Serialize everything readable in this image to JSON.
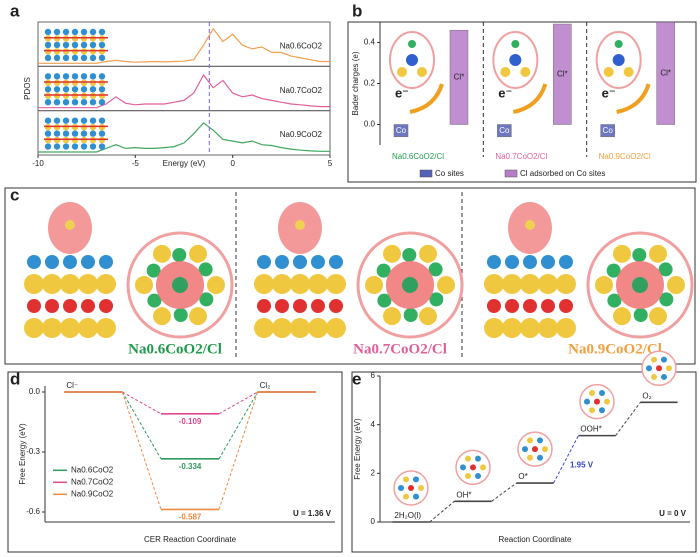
{
  "panel_labels": [
    "a",
    "b",
    "c",
    "d",
    "e"
  ],
  "figure_c": {
    "labels": [
      "Na0.6CoO2/Cl",
      "Na0.7CoO2/Cl",
      "Na0.9CoO2/Cl"
    ],
    "colors": [
      "#1f9a4a",
      "#e0609a",
      "#f0a040"
    ]
  },
  "chart_data": [
    {
      "type": "line",
      "xlabel": "Energy (eV)",
      "ylabel": "PDOS",
      "x": [
        -10,
        -9.5,
        -9,
        -8.5,
        -8,
        -7.5,
        -7,
        -6.5,
        -6,
        -5.5,
        -5,
        -4.5,
        -4,
        -3.5,
        -3,
        -2.5,
        -2,
        -1.5,
        -1,
        -0.5,
        0,
        0.5,
        1,
        1.5,
        2,
        2.5,
        3,
        3.5,
        4,
        4.5,
        5
      ],
      "xlim": [
        -10,
        5
      ],
      "xticks": [
        -10,
        -5,
        0,
        5
      ],
      "ylim": [
        0,
        1
      ],
      "vline": -1.2,
      "series": [
        {
          "name": "Na0.6CoO2",
          "color": "#f0a050",
          "values": [
            0,
            0,
            0,
            0,
            0,
            0,
            0,
            0.05,
            0.08,
            0.05,
            0.03,
            0.04,
            0.05,
            0.04,
            0.05,
            0.06,
            0.1,
            0.5,
            0.95,
            0.6,
            0.8,
            0.5,
            0.4,
            0.45,
            0.3,
            0.3,
            0.2,
            0.15,
            0.1,
            0.05,
            0.05
          ]
        },
        {
          "name": "Na0.7CoO2",
          "color": "#e0609a",
          "values": [
            0,
            0,
            0,
            0,
            0,
            0,
            0,
            0.1,
            0.3,
            0.12,
            0.08,
            0.1,
            0.1,
            0.1,
            0.15,
            0.2,
            0.4,
            0.9,
            0.55,
            0.75,
            0.4,
            0.3,
            0.35,
            0.25,
            0.2,
            0.15,
            0.1,
            0.08,
            0.05,
            0.03,
            0.03
          ]
        },
        {
          "name": "Na0.9CoO2",
          "color": "#40a860",
          "values": [
            0,
            0,
            0,
            0,
            0,
            0,
            0,
            0.1,
            0.2,
            0.1,
            0.12,
            0.1,
            0.1,
            0.12,
            0.15,
            0.25,
            0.5,
            0.8,
            0.6,
            0.35,
            0.3,
            0.25,
            0.3,
            0.2,
            0.18,
            0.12,
            0.08,
            0.05,
            0.03,
            0.02,
            0.02
          ]
        }
      ]
    },
    {
      "type": "bar",
      "ylabel": "Bader charges (e)",
      "electron_label": "e⁻",
      "categories": [
        "Na0.6CoO2/Cl",
        "Na0.7CoO2/Cl",
        "Na0.9CoO2/Cl"
      ],
      "category_colors": [
        "#1f9a4a",
        "#e0609a",
        "#f0a040"
      ],
      "ylim": [
        -0.1,
        0.5
      ],
      "yticks": [
        {
          "value": 0,
          "label": "0.0"
        },
        0.2,
        0.4
      ],
      "series": [
        {
          "name": "Co sites",
          "label": "Co",
          "color": "#5561b8",
          "values": [
            -0.06,
            -0.06,
            -0.06
          ]
        },
        {
          "name": "Cl adsorbed on Co sites",
          "label": "Cl*",
          "color": "#b77cc8",
          "values": [
            0.46,
            0.49,
            0.5
          ]
        }
      ]
    },
    {
      "type": "energy",
      "xlabel": "CER Reaction Coordinate",
      "ylabel": "Free Energy (eV)",
      "potential_label": "U = 1.36 V",
      "categories": [
        "Cl⁻",
        null,
        "Cl₂"
      ],
      "ylim": [
        -0.65,
        0.03
      ],
      "yticks": [
        {
          "value": 0,
          "label": "0.0"
        },
        -0.3,
        -0.6
      ],
      "series": [
        {
          "name": "Na0.6CoO2",
          "color": "#2e9a5e",
          "values": [
            0,
            -0.334,
            0
          ],
          "value_labels": [
            null,
            "-0.334",
            null
          ]
        },
        {
          "name": "Na0.7CoO2",
          "color": "#e04890",
          "values": [
            0,
            -0.109,
            0
          ],
          "value_labels": [
            null,
            "-0.109",
            null
          ]
        },
        {
          "name": "Na0.9CoO2",
          "color": "#f08a40",
          "values": [
            0,
            -0.587,
            0
          ],
          "value_labels": [
            null,
            "-0.587",
            null
          ]
        }
      ]
    },
    {
      "type": "energy",
      "xlabel": "Reaction Coordinate",
      "ylabel": "Free Energy (eV)",
      "potential_label": "U = 0 V",
      "step_label": "1.95 V",
      "categories": [
        "2H₂O(l)",
        "OH*",
        "O*",
        "OOH*",
        "O₂"
      ],
      "values": [
        0,
        0.85,
        1.6,
        3.55,
        4.92
      ],
      "color": "#444444",
      "ylim": [
        0,
        6
      ],
      "yticks": [
        0,
        2,
        4,
        6
      ]
    }
  ]
}
